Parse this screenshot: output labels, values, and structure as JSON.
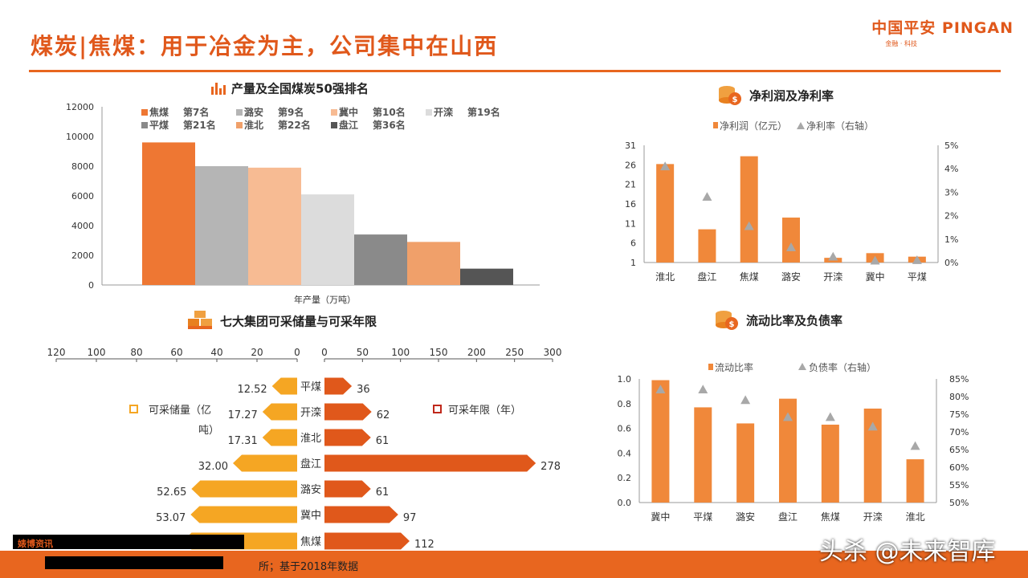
{
  "header": {
    "title": "煤炭|焦煤：用于冶金为主，公司集中在山西",
    "logo_main": "中国平安 PINGAN",
    "logo_sub": "金融 · 科技"
  },
  "footer": {
    "note": "所；基于2018年数据",
    "redacted_label": "婊博资讯"
  },
  "watermark": "头杀 @未来智库",
  "colors": {
    "accent": "#e8661f",
    "series_orange": "#f0883a",
    "reserves": "#f5a623",
    "years": "#e0581b"
  },
  "chart_data": [
    {
      "type": "bar",
      "title": "产量及全国煤炭50强排名",
      "xlabel": "年产量（万吨）",
      "ylabel": "",
      "ylim": [
        0,
        12000
      ],
      "yticks": [
        0,
        2000,
        4000,
        6000,
        8000,
        10000,
        12000
      ],
      "legend_position": "top",
      "series": [
        {
          "name": "焦煤",
          "rank": "第7名",
          "value": 9600,
          "color": "#ee7733"
        },
        {
          "name": "潞安",
          "rank": "第9名",
          "value": 8000,
          "color": "#b5b5b5"
        },
        {
          "name": "冀中",
          "rank": "第10名",
          "value": 7900,
          "color": "#f7bb93"
        },
        {
          "name": "开滦",
          "rank": "第19名",
          "value": 6100,
          "color": "#dcdcdc"
        },
        {
          "name": "平煤",
          "rank": "第21名",
          "value": 3400,
          "color": "#8a8a8a"
        },
        {
          "name": "淮北",
          "rank": "第22名",
          "value": 2900,
          "color": "#f0a06a"
        },
        {
          "name": "盘江",
          "rank": "第36名",
          "value": 1100,
          "color": "#555555"
        }
      ]
    },
    {
      "type": "bar",
      "title": "净利润及净利率",
      "categories": [
        "淮北",
        "盘江",
        "焦煤",
        "潞安",
        "开滦",
        "冀中",
        "平煤"
      ],
      "ylim": [
        1,
        31
      ],
      "yticks": [
        1,
        6,
        11,
        16,
        21,
        26,
        31
      ],
      "y2lim": [
        0,
        5
      ],
      "y2ticks": [
        "0%",
        "1%",
        "2%",
        "3%",
        "4%",
        "5%"
      ],
      "legend_position": "top",
      "series": [
        {
          "name": "净利润（亿元）",
          "kind": "bar",
          "axis": "left",
          "values": [
            26.2,
            9.5,
            28.2,
            12.5,
            2.2,
            3.4,
            2.5
          ]
        },
        {
          "name": "净利率（右轴）",
          "kind": "marker",
          "axis": "right",
          "values": [
            4.1,
            2.8,
            1.55,
            0.65,
            0.25,
            0.08,
            0.1
          ]
        }
      ]
    },
    {
      "type": "bar",
      "title": "七大集团可采储量与可采年限",
      "categories": [
        "平煤",
        "开滦",
        "淮北",
        "盘江",
        "潞安",
        "冀中",
        "焦煤"
      ],
      "legend_position": "middle",
      "series": [
        {
          "name": "可采储量（亿吨）",
          "axis": "left-reversed",
          "xlim": [
            0,
            120
          ],
          "xticks": [
            120,
            100,
            80,
            60,
            40,
            20,
            0
          ],
          "values": [
            12.52,
            17.27,
            17.31,
            32.0,
            52.65,
            53.07,
            57.0
          ],
          "labels": [
            "12.52",
            "17.27",
            "17.31",
            "32.00",
            "52.65",
            "53.07",
            ""
          ]
        },
        {
          "name": "可采年限（年）",
          "axis": "right",
          "xlim": [
            0,
            300
          ],
          "xticks": [
            0,
            50,
            100,
            150,
            200,
            250,
            300
          ],
          "values": [
            36,
            62,
            61,
            278,
            61,
            97,
            112
          ],
          "labels": [
            "36",
            "62",
            "61",
            "278",
            "61",
            "97",
            "112"
          ]
        }
      ]
    },
    {
      "type": "bar",
      "title": "流动比率及负债率",
      "categories": [
        "冀中",
        "平煤",
        "潞安",
        "盘江",
        "焦煤",
        "开滦",
        "淮北"
      ],
      "ylim": [
        0,
        1.0
      ],
      "yticks": [
        "0.0",
        "0.2",
        "0.4",
        "0.6",
        "0.8",
        "1.0"
      ],
      "y2lim": [
        50,
        85
      ],
      "y2ticks": [
        "50%",
        "55%",
        "60%",
        "65%",
        "70%",
        "75%",
        "80%",
        "85%"
      ],
      "legend_position": "top",
      "series": [
        {
          "name": "流动比率",
          "kind": "bar",
          "axis": "left",
          "values": [
            0.99,
            0.77,
            0.64,
            0.84,
            0.63,
            0.76,
            0.35
          ]
        },
        {
          "name": "负债率（右轴）",
          "kind": "marker",
          "axis": "right",
          "values": [
            82.0,
            82.0,
            79.0,
            74.2,
            74.2,
            71.5,
            66.0
          ]
        }
      ]
    }
  ]
}
